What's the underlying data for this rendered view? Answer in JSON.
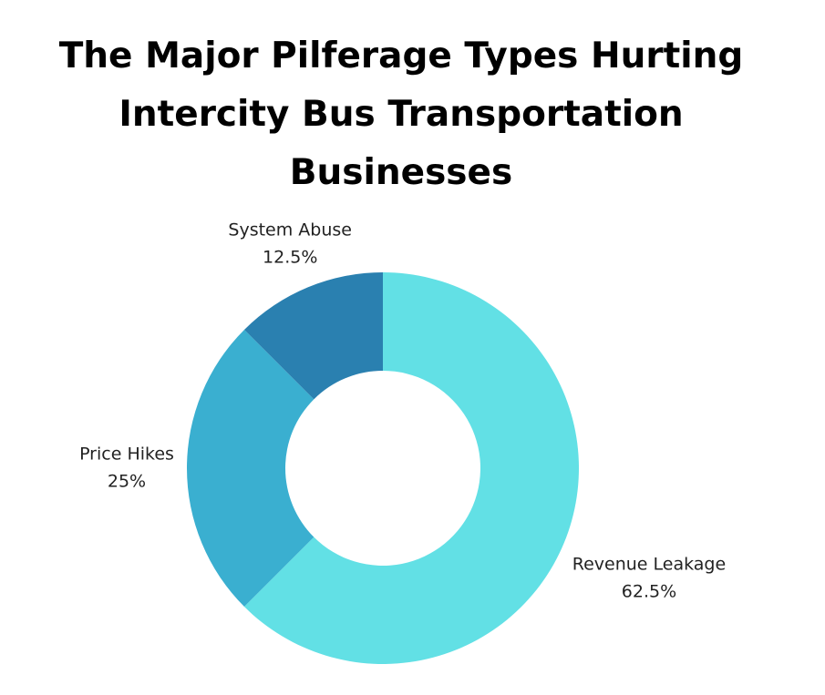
{
  "chart_data": {
    "type": "pie",
    "title": "The Major Pilferage Types Hurting Intercity Bus Transportation Businesses",
    "categories": [
      "Revenue Leakage",
      "Price Hikes",
      "System Abuse"
    ],
    "values": [
      62.5,
      25,
      12.5
    ],
    "value_labels": [
      "62.5%",
      "25%",
      "12.5%"
    ],
    "colors": [
      "#62e0e5",
      "#3aafd0",
      "#2a80b0"
    ],
    "donut": true
  }
}
